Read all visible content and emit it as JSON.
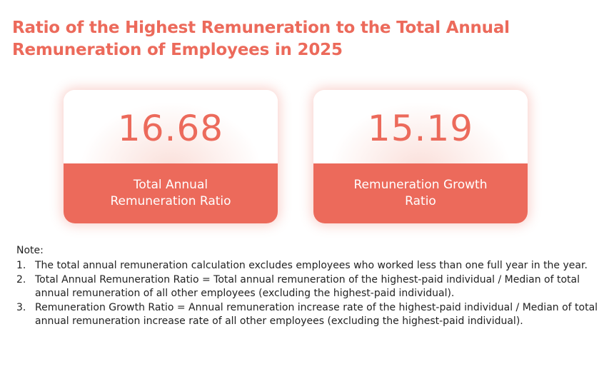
{
  "title": "Ratio of the Highest Remuneration to the Total Annual Remuneration of Employees in 2025",
  "colors": {
    "accent": "#ec6a5b",
    "text": "#222222",
    "label_text": "#ffffff"
  },
  "cards": [
    {
      "value": "16.68",
      "label": "Total Annual Remuneration Ratio"
    },
    {
      "value": "15.19",
      "label": "Remuneration Growth Ratio"
    }
  ],
  "notes": {
    "heading": "Note:",
    "items": [
      {
        "number": "1.",
        "text": "The total annual remuneration calculation excludes employees who worked less than one full year in the year."
      },
      {
        "number": "2.",
        "text": "Total Annual Remuneration Ratio = Total annual remuneration of the highest-paid individual / Median of total annual remuneration of all other employees (excluding the highest-paid individual)."
      },
      {
        "number": "3.",
        "text": "Remuneration Growth Ratio = Annual remuneration increase rate of the highest-paid individual / Median of total annual remuneration increase rate of all other employees (excluding the highest-paid individual)."
      }
    ]
  }
}
